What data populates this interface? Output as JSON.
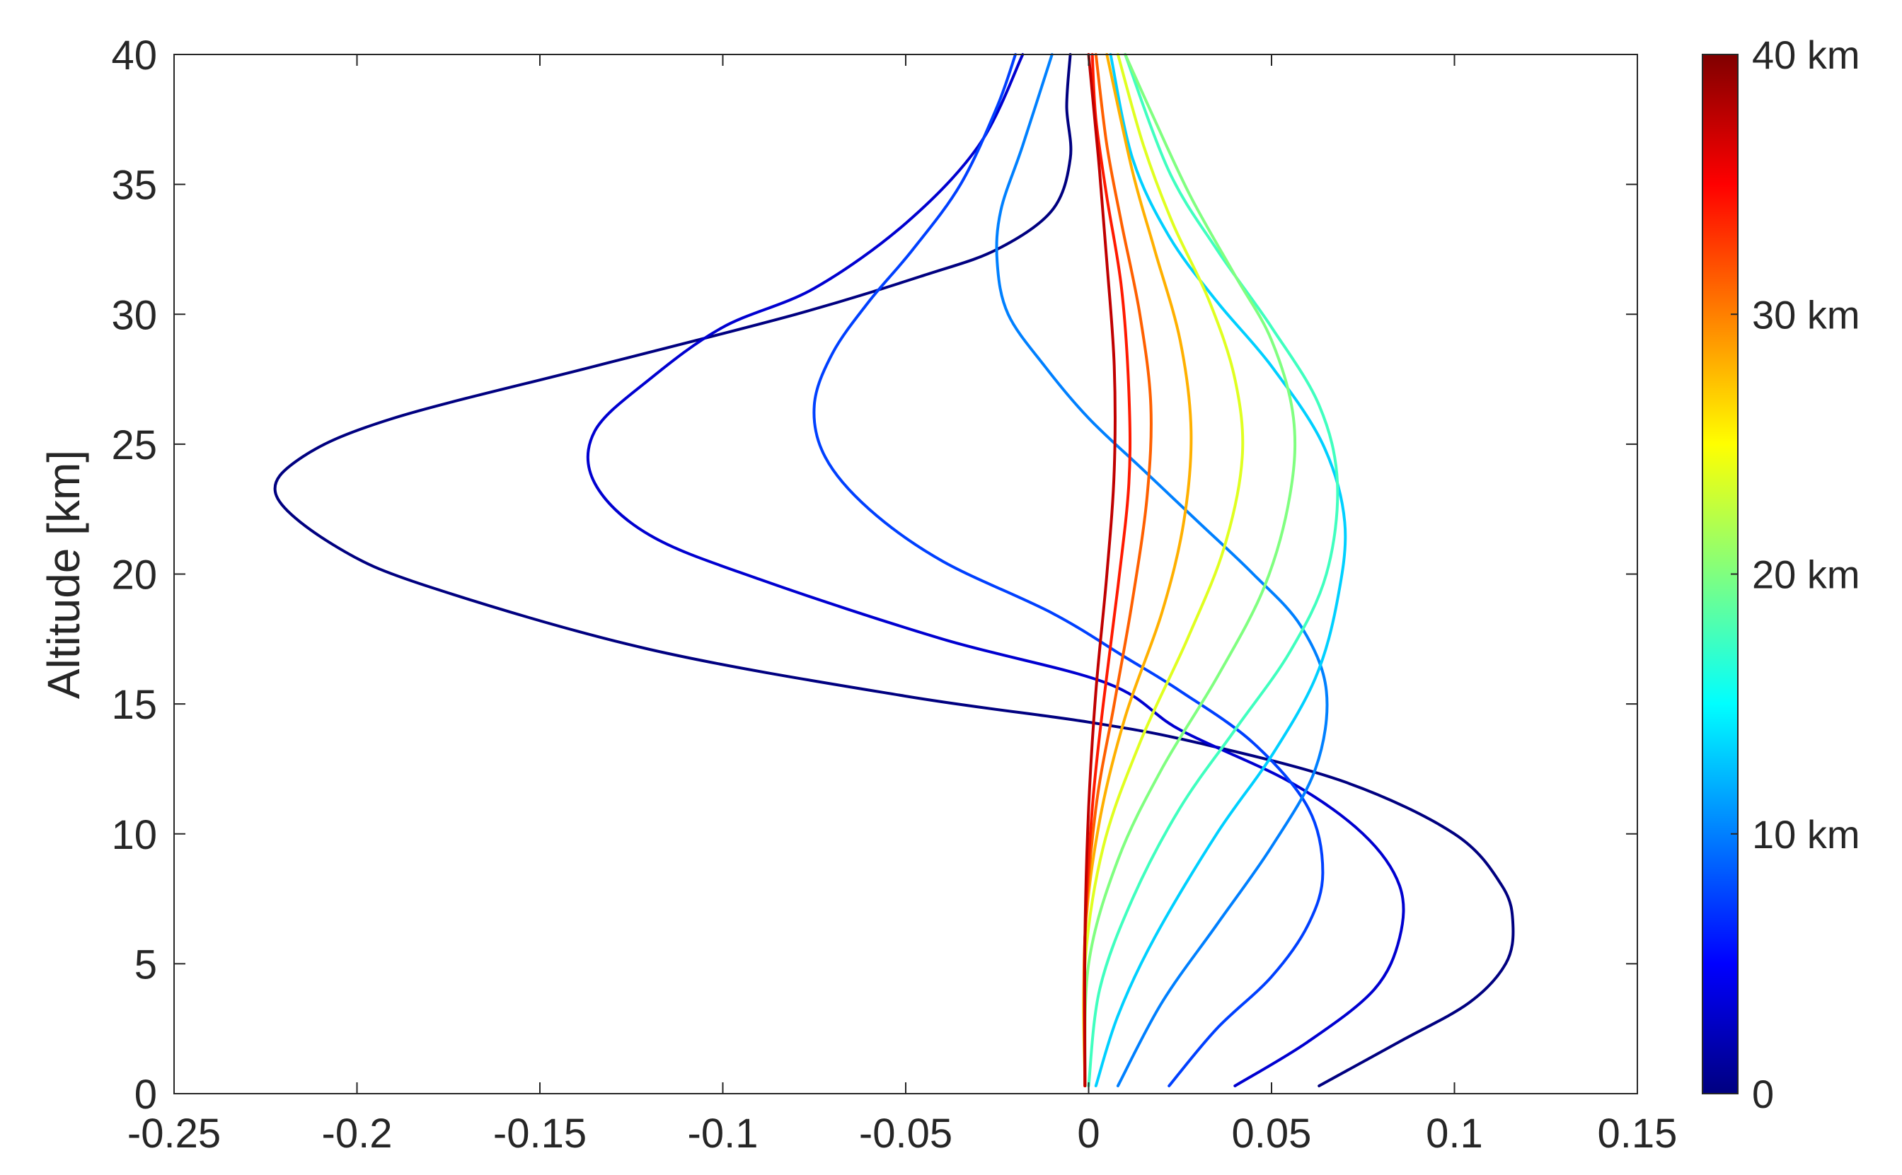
{
  "chart_data": {
    "type": "line",
    "title": "",
    "xlabel": "",
    "ylabel": "Altitude [km]",
    "xlim": [
      -0.25,
      0.15
    ],
    "ylim": [
      0,
      40
    ],
    "xticks": [
      "-0.25",
      "-0.2",
      "-0.15",
      "-0.1",
      "-0.05",
      "0",
      "0.05",
      "0.1",
      "0.15"
    ],
    "yticks": [
      "0",
      "5",
      "10",
      "15",
      "20",
      "25",
      "30",
      "35",
      "40"
    ],
    "grid": false,
    "colorbar": {
      "range": [
        0,
        40
      ],
      "colormap": "jet",
      "labels": [
        "0",
        "10 km",
        "20 km",
        "30 km",
        "40 km"
      ],
      "placement": "right"
    },
    "series": [
      {
        "color": "#000080",
        "points": [
          [
            0.063,
            0.3
          ],
          [
            0.085,
            2
          ],
          [
            0.104,
            3.5
          ],
          [
            0.114,
            5
          ],
          [
            0.116,
            6.5
          ],
          [
            0.113,
            8
          ],
          [
            0.1,
            10
          ],
          [
            0.07,
            12
          ],
          [
            0.03,
            13.5
          ],
          [
            0,
            14.3
          ],
          [
            -0.05,
            15.3
          ],
          [
            -0.12,
            17.1
          ],
          [
            -0.18,
            19.5
          ],
          [
            -0.205,
            21
          ],
          [
            -0.222,
            23
          ],
          [
            -0.215,
            24.5
          ],
          [
            -0.19,
            26
          ],
          [
            -0.135,
            28
          ],
          [
            -0.08,
            30
          ],
          [
            -0.045,
            31.5
          ],
          [
            -0.025,
            32.5
          ],
          [
            -0.01,
            34
          ],
          [
            -0.005,
            36
          ],
          [
            -0.006,
            38
          ],
          [
            -0.005,
            40
          ]
        ]
      },
      {
        "color": "#0000d0",
        "points": [
          [
            0.04,
            0.3
          ],
          [
            0.06,
            2
          ],
          [
            0.078,
            4
          ],
          [
            0.085,
            6
          ],
          [
            0.085,
            8
          ],
          [
            0.075,
            10
          ],
          [
            0.055,
            12
          ],
          [
            0.025,
            14
          ],
          [
            0.005,
            15.8
          ],
          [
            -0.04,
            17.5
          ],
          [
            -0.09,
            19.8
          ],
          [
            -0.12,
            21.5
          ],
          [
            -0.135,
            23.5
          ],
          [
            -0.135,
            25.5
          ],
          [
            -0.12,
            27.5
          ],
          [
            -0.1,
            29.5
          ],
          [
            -0.075,
            31
          ],
          [
            -0.05,
            33.5
          ],
          [
            -0.03,
            36.5
          ],
          [
            -0.018,
            40
          ]
        ]
      },
      {
        "color": "#0040ff",
        "points": [
          [
            0.022,
            0.3
          ],
          [
            0.035,
            2.5
          ],
          [
            0.05,
            4.5
          ],
          [
            0.06,
            6.5
          ],
          [
            0.064,
            8.5
          ],
          [
            0.06,
            11
          ],
          [
            0.045,
            13.5
          ],
          [
            0.025,
            15.5
          ],
          [
            0.01,
            16.8
          ],
          [
            -0.01,
            18.5
          ],
          [
            -0.04,
            20.5
          ],
          [
            -0.06,
            22.5
          ],
          [
            -0.072,
            24.5
          ],
          [
            -0.075,
            26.5
          ],
          [
            -0.07,
            28.5
          ],
          [
            -0.06,
            30.5
          ],
          [
            -0.048,
            32.5
          ],
          [
            -0.035,
            35
          ],
          [
            -0.025,
            38
          ],
          [
            -0.02,
            40
          ]
        ]
      },
      {
        "color": "#0080ff",
        "points": [
          [
            0.008,
            0.3
          ],
          [
            0.02,
            3.5
          ],
          [
            0.035,
            6.5
          ],
          [
            0.05,
            9.5
          ],
          [
            0.062,
            12.5
          ],
          [
            0.065,
            15.5
          ],
          [
            0.058,
            18
          ],
          [
            0.045,
            20
          ],
          [
            0.03,
            22
          ],
          [
            0.015,
            24
          ],
          [
            0.0,
            26
          ],
          [
            -0.012,
            28
          ],
          [
            -0.022,
            30
          ],
          [
            -0.025,
            32
          ],
          [
            -0.024,
            34
          ],
          [
            -0.018,
            36.5
          ],
          [
            -0.01,
            40
          ]
        ]
      },
      {
        "color": "#00d0ff",
        "points": [
          [
            0.002,
            0.3
          ],
          [
            0.008,
            3
          ],
          [
            0.018,
            6
          ],
          [
            0.035,
            10
          ],
          [
            0.05,
            13
          ],
          [
            0.062,
            16
          ],
          [
            0.068,
            19
          ],
          [
            0.07,
            22
          ],
          [
            0.064,
            25
          ],
          [
            0.05,
            28
          ],
          [
            0.035,
            30.5
          ],
          [
            0.022,
            33
          ],
          [
            0.012,
            36
          ],
          [
            0.006,
            40
          ]
        ]
      },
      {
        "color": "#40ffbf",
        "points": [
          [
            0.0,
            0.3
          ],
          [
            0.003,
            4
          ],
          [
            0.012,
            7.5
          ],
          [
            0.025,
            11
          ],
          [
            0.04,
            14
          ],
          [
            0.055,
            17
          ],
          [
            0.065,
            20
          ],
          [
            0.068,
            23.5
          ],
          [
            0.063,
            26.5
          ],
          [
            0.05,
            29.5
          ],
          [
            0.035,
            32.5
          ],
          [
            0.022,
            35.5
          ],
          [
            0.01,
            40
          ]
        ]
      },
      {
        "color": "#80ff80",
        "points": [
          [
            -0.001,
            0.3
          ],
          [
            0.0,
            5
          ],
          [
            0.008,
            9
          ],
          [
            0.02,
            12.5
          ],
          [
            0.035,
            16
          ],
          [
            0.048,
            19.5
          ],
          [
            0.055,
            23
          ],
          [
            0.056,
            26
          ],
          [
            0.05,
            29
          ],
          [
            0.04,
            31.5
          ],
          [
            0.028,
            34.5
          ],
          [
            0.018,
            37.5
          ],
          [
            0.01,
            40
          ]
        ]
      },
      {
        "color": "#e0ff20",
        "points": [
          [
            -0.001,
            0.3
          ],
          [
            -0.001,
            5
          ],
          [
            0.004,
            9.5
          ],
          [
            0.014,
            13.5
          ],
          [
            0.027,
            17.5
          ],
          [
            0.037,
            21
          ],
          [
            0.042,
            24.5
          ],
          [
            0.04,
            27.5
          ],
          [
            0.033,
            30.5
          ],
          [
            0.023,
            33.5
          ],
          [
            0.015,
            36.5
          ],
          [
            0.008,
            40
          ]
        ]
      },
      {
        "color": "#ffb000",
        "points": [
          [
            -0.001,
            0.3
          ],
          [
            -0.001,
            6
          ],
          [
            0.003,
            10.5
          ],
          [
            0.01,
            14.5
          ],
          [
            0.02,
            18.5
          ],
          [
            0.026,
            22
          ],
          [
            0.028,
            25.5
          ],
          [
            0.025,
            29
          ],
          [
            0.018,
            32.5
          ],
          [
            0.012,
            35.5
          ],
          [
            0.005,
            40
          ]
        ]
      },
      {
        "color": "#ff6000",
        "points": [
          [
            -0.001,
            0.3
          ],
          [
            -0.001,
            6
          ],
          [
            0.002,
            11
          ],
          [
            0.007,
            15
          ],
          [
            0.012,
            19
          ],
          [
            0.016,
            23
          ],
          [
            0.017,
            26.5
          ],
          [
            0.014,
            30
          ],
          [
            0.009,
            33.5
          ],
          [
            0.005,
            36.5
          ],
          [
            0.002,
            40
          ]
        ]
      },
      {
        "color": "#ff1a00",
        "points": [
          [
            -0.001,
            0.3
          ],
          [
            -0.001,
            6
          ],
          [
            0.001,
            11
          ],
          [
            0.004,
            15
          ],
          [
            0.008,
            19.5
          ],
          [
            0.011,
            23.5
          ],
          [
            0.011,
            27
          ],
          [
            0.009,
            31
          ],
          [
            0.005,
            34.5
          ],
          [
            0.002,
            37.5
          ],
          [
            0.001,
            40
          ]
        ]
      },
      {
        "color": "#c00000",
        "points": [
          [
            -0.001,
            0.3
          ],
          [
            -0.001,
            6
          ],
          [
            0.0,
            11
          ],
          [
            0.002,
            15.5
          ],
          [
            0.005,
            20
          ],
          [
            0.007,
            24
          ],
          [
            0.007,
            28
          ],
          [
            0.005,
            32
          ],
          [
            0.003,
            35.5
          ],
          [
            0.001,
            38.5
          ],
          [
            0.0,
            40
          ]
        ]
      }
    ]
  }
}
